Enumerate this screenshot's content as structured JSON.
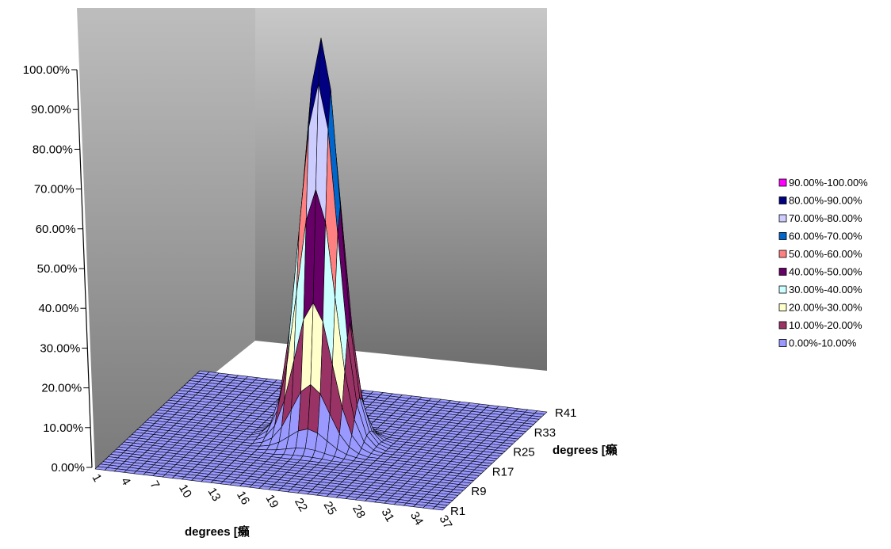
{
  "chart_data": {
    "type": "surface",
    "y_axis": {
      "tick_labels": [
        "0.00%",
        "10.00%",
        "20.00%",
        "30.00%",
        "40.00%",
        "50.00%",
        "60.00%",
        "70.00%",
        "80.00%",
        "90.00%",
        "100.00%"
      ],
      "range": [
        0,
        100
      ]
    },
    "x_axis": {
      "label": "degrees [癩",
      "tick_labels": [
        "1",
        "4",
        "7",
        "10",
        "13",
        "16",
        "19",
        "22",
        "25",
        "28",
        "31",
        "34",
        "37"
      ],
      "count": 37
    },
    "depth_axis": {
      "label": "degrees [癩",
      "tick_labels": [
        "R1",
        "R9",
        "R17",
        "R25",
        "R33",
        "R41"
      ],
      "count": 41
    },
    "surface": {
      "shape": "single central peak",
      "peak_value": 100,
      "baseline_value": 0,
      "peak_center_x": 19,
      "peak_center_row": 21
    },
    "legend": {
      "position": "right",
      "entries": [
        {
          "label": "90.00%-100.00%",
          "color": "#ff00ff"
        },
        {
          "label": "80.00%-90.00%",
          "color": "#000080"
        },
        {
          "label": "70.00%-80.00%",
          "color": "#ccccff"
        },
        {
          "label": "60.00%-70.00%",
          "color": "#0066cc"
        },
        {
          "label": "50.00%-60.00%",
          "color": "#ff8080"
        },
        {
          "label": "40.00%-50.00%",
          "color": "#660066"
        },
        {
          "label": "30.00%-40.00%",
          "color": "#ccffff"
        },
        {
          "label": "20.00%-30.00%",
          "color": "#ffffcc"
        },
        {
          "label": "10.00%-20.00%",
          "color": "#993366"
        },
        {
          "label": "0.00%-10.00%",
          "color": "#9999ff"
        }
      ]
    },
    "colors": {
      "back_wall_top": "#c8c8c8",
      "back_wall_bottom": "#6e6e6e",
      "side_wall_top": "#bdbdbd",
      "side_wall_bottom": "#7a7a7a"
    }
  }
}
